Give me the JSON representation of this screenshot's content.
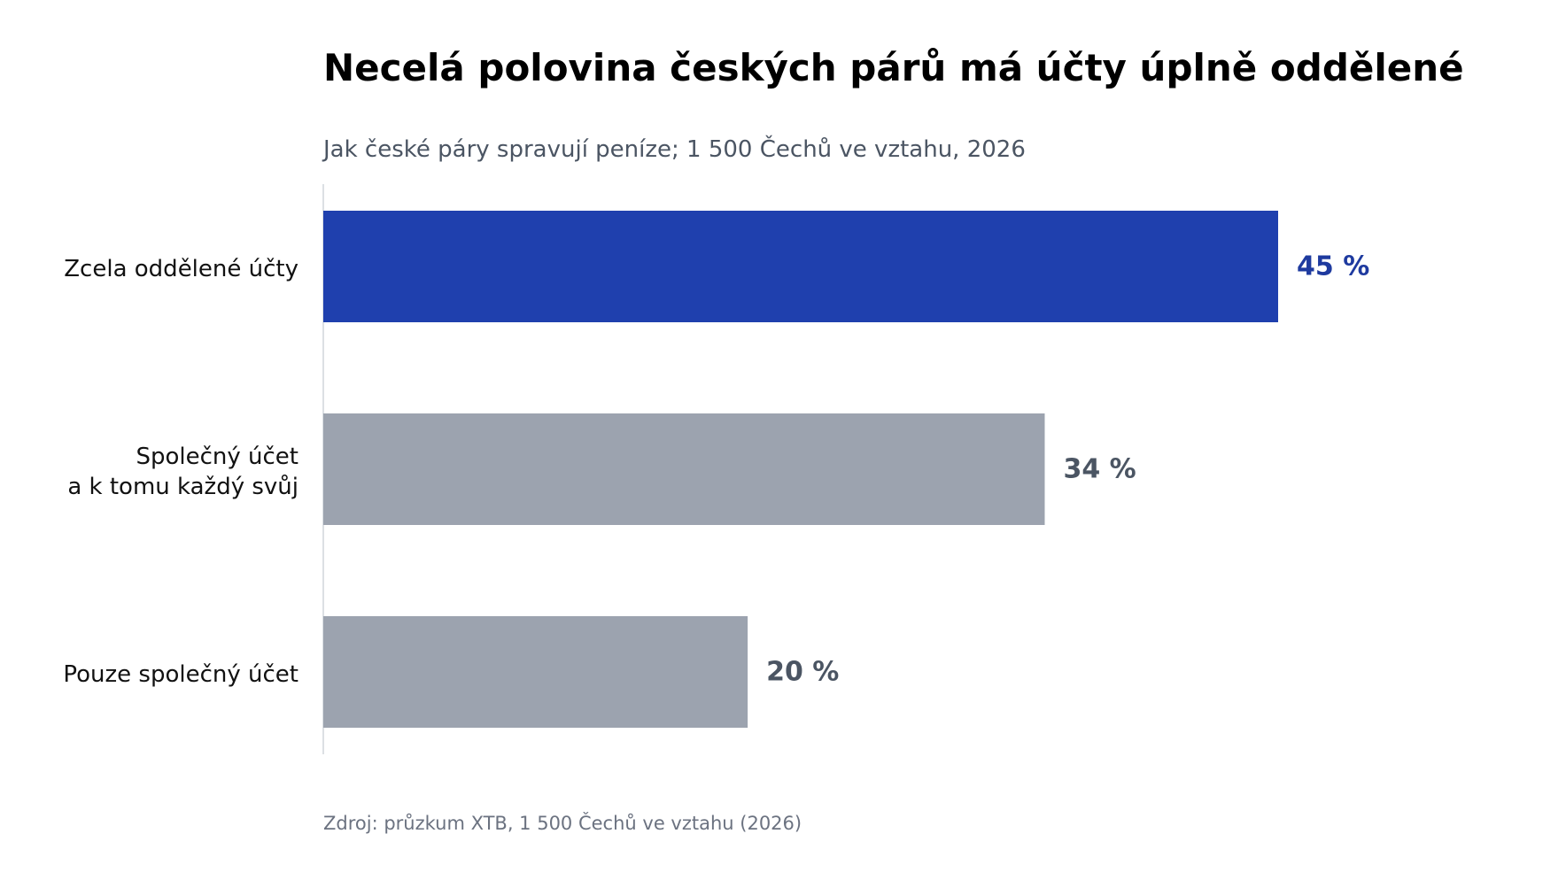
{
  "chart_data": {
    "type": "bar",
    "orientation": "horizontal",
    "title": "Necelá polovina českých párů má účty úplně oddělené",
    "subtitle": "Jak české páry spravují peníze; 1 500 Čechů ve vztahu, 2026",
    "source": "Zdroj: průzkum XTB, 1 500 Čechů ve vztahu (2026)",
    "categories": [
      [
        "Zcela oddělené účty"
      ],
      [
        "Společný účet",
        "a k tomu každý svůj"
      ],
      [
        "Pouze společný účet"
      ]
    ],
    "values": [
      45,
      34,
      20
    ],
    "value_labels": [
      "45 %",
      "34 %",
      "20 %"
    ],
    "unit": "%",
    "xlim": [
      0,
      50
    ],
    "grid": false,
    "legend": "none",
    "colors": {
      "highlight_bar": "#1f40ae",
      "highlight_label": "#1e3a9f",
      "other_bar": "#9ca3af",
      "other_label": "#4b5563",
      "axis_line": "#d1d5db"
    },
    "highlight_index": 0
  }
}
